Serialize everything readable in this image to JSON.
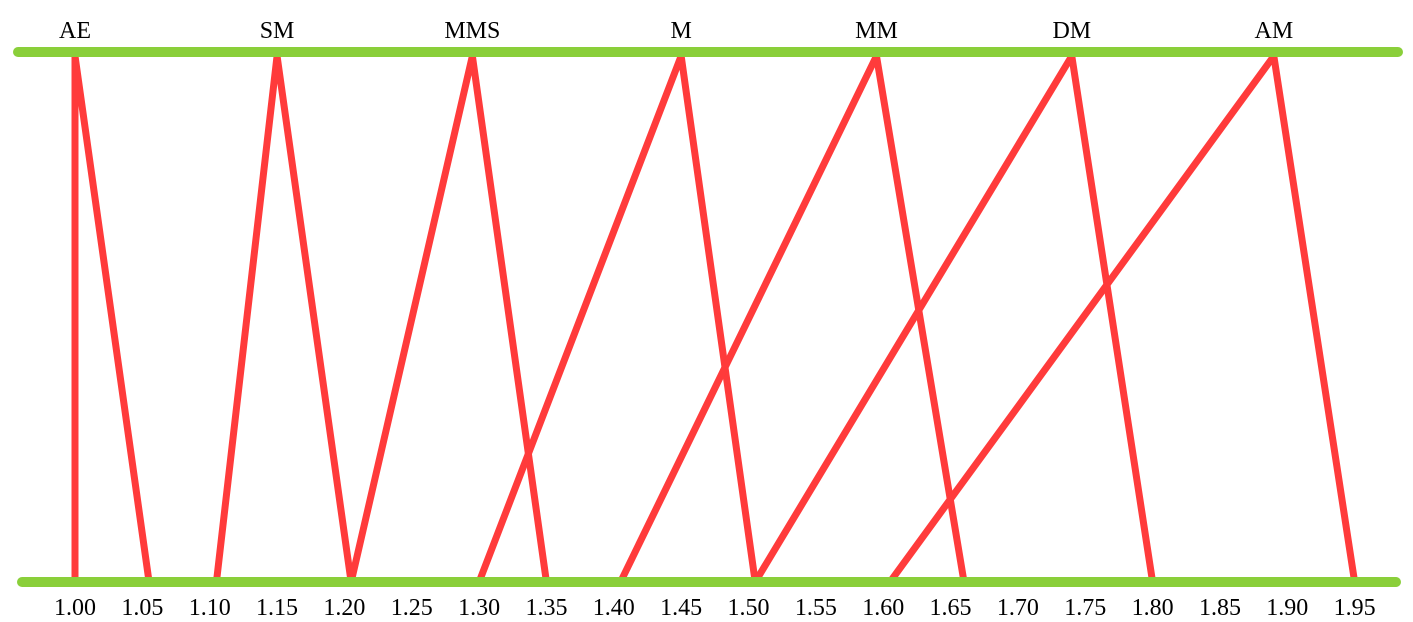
{
  "diagram": {
    "line_color": "#8ACF3A",
    "triangle_color": "#FF3B3B",
    "text_color": "#000000",
    "top_labels": [
      "AE",
      "SM",
      "MMS",
      "M",
      "MM",
      "DM",
      "AM"
    ],
    "scale_labels": [
      "1.00",
      "1.05",
      "1.10",
      "1.15",
      "1.20",
      "1.25",
      "1.30",
      "1.35",
      "1.40",
      "1.45",
      "1.50",
      "1.55",
      "1.60",
      "1.65",
      "1.70",
      "1.75",
      "1.80",
      "1.85",
      "1.90",
      "1.95"
    ],
    "triangles": [
      {
        "label": "AE",
        "left": 1.0,
        "peak": 1.0,
        "right": 1.055
      },
      {
        "label": "SM",
        "left": 1.105,
        "peak": 1.15,
        "right": 1.205
      },
      {
        "label": "MMS",
        "left": 1.205,
        "peak": 1.295,
        "right": 1.35
      },
      {
        "label": "M",
        "left": 1.3,
        "peak": 1.45,
        "right": 1.505
      },
      {
        "label": "MM",
        "left": 1.405,
        "peak": 1.595,
        "right": 1.66
      },
      {
        "label": "DM",
        "left": 1.505,
        "peak": 1.74,
        "right": 1.8
      },
      {
        "label": "AM",
        "left": 1.605,
        "peak": 1.89,
        "right": 1.95
      }
    ]
  }
}
